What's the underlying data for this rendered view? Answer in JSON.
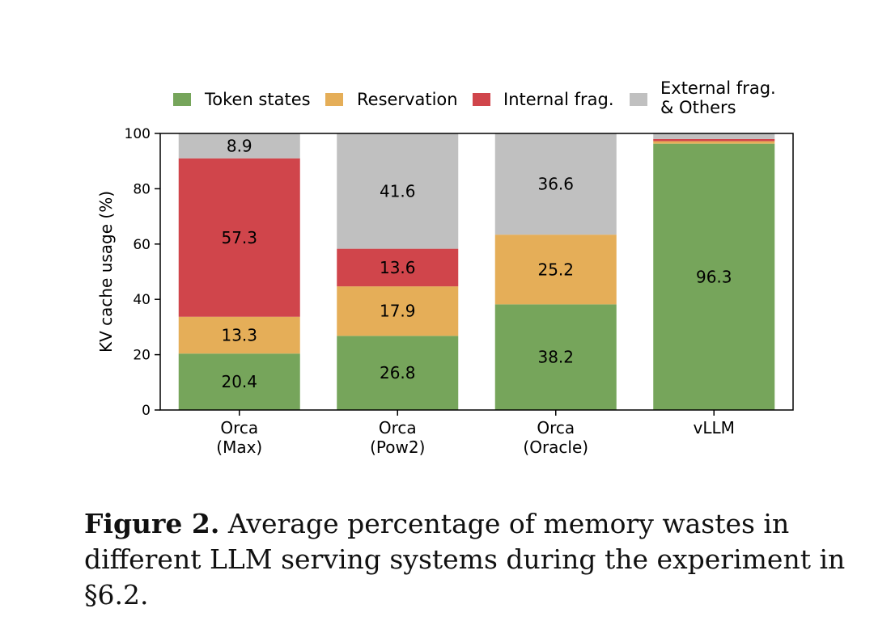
{
  "chart_data": {
    "type": "bar",
    "stacked": true,
    "categories": [
      [
        "Orca",
        "(Max)"
      ],
      [
        "Orca",
        "(Pow2)"
      ],
      [
        "Orca",
        "(Oracle)"
      ],
      [
        "vLLM"
      ]
    ],
    "series": [
      {
        "name": "Token states",
        "color": "#76a55b",
        "values": [
          20.4,
          26.8,
          38.2,
          96.3
        ],
        "labels": [
          "20.4",
          "26.8",
          "38.2",
          "96.3"
        ]
      },
      {
        "name": "Reservation",
        "color": "#e5ae58",
        "values": [
          13.3,
          17.9,
          25.2,
          0.9
        ],
        "labels": [
          "13.3",
          "17.9",
          "25.2",
          ""
        ]
      },
      {
        "name": "Internal frag.",
        "color": "#d0454b",
        "values": [
          57.3,
          13.6,
          0,
          0.8
        ],
        "labels": [
          "57.3",
          "13.6",
          "",
          ""
        ]
      },
      {
        "name": "External frag.\n& Others",
        "color": "#c0c0c0",
        "values": [
          8.9,
          41.6,
          36.6,
          2.0
        ],
        "labels": [
          "8.9",
          "41.6",
          "36.6",
          ""
        ]
      }
    ],
    "ylabel": "KV cache usage (%)",
    "xlabel": "",
    "ylim": [
      0,
      100
    ],
    "yticks": [
      0,
      20,
      40,
      60,
      80,
      100
    ],
    "legend": "top",
    "grid": false
  },
  "caption": {
    "lead": "Figure 2.",
    "text": " Average percentage of memory wastes in different LLM serving systems during the experiment in §6.2."
  }
}
